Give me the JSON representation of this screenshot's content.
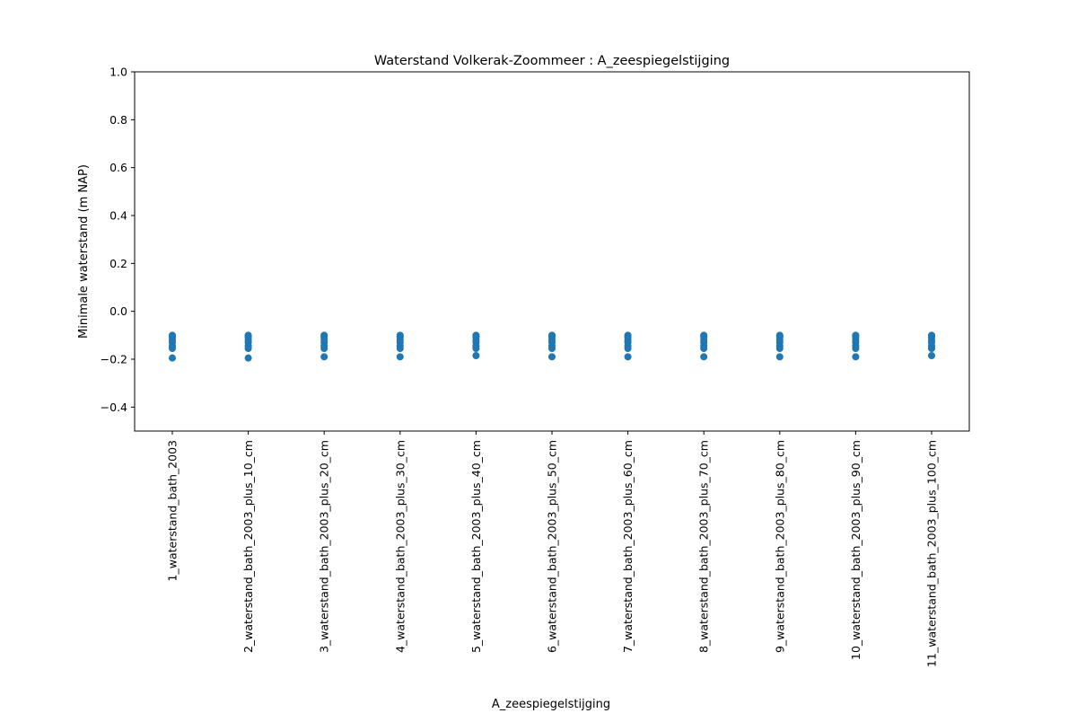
{
  "chart_data": {
    "type": "scatter",
    "title": "Waterstand Volkerak-Zoommeer : A_zeespiegelstijging",
    "xlabel": "A_zeespiegelstijging",
    "ylabel": "Minimale waterstand (m NAP)",
    "ylim": [
      -0.5,
      1.0
    ],
    "yticks": [
      "−0.4",
      "−0.2",
      "0.0",
      "0.2",
      "0.4",
      "0.6",
      "0.8",
      "1.0"
    ],
    "ytick_values": [
      -0.4,
      -0.2,
      0.0,
      0.2,
      0.4,
      0.6,
      0.8,
      1.0
    ],
    "grid": false,
    "marker_color": "#1f77b4",
    "categories": [
      "1_waterstand_bath_2003",
      "2_waterstand_bath_2003_plus_10_cm",
      "3_waterstand_bath_2003_plus_20_cm",
      "4_waterstand_bath_2003_plus_30_cm",
      "5_waterstand_bath_2003_plus_40_cm",
      "6_waterstand_bath_2003_plus_50_cm",
      "7_waterstand_bath_2003_plus_60_cm",
      "8_waterstand_bath_2003_plus_70_cm",
      "9_waterstand_bath_2003_plus_80_cm",
      "10_waterstand_bath_2003_plus_90_cm",
      "11_waterstand_bath_2003_plus_100_cm"
    ],
    "series": [
      {
        "values": [
          [
            -0.1,
            -0.105,
            -0.11,
            -0.12,
            -0.13,
            -0.145,
            -0.155,
            -0.195
          ],
          [
            -0.1,
            -0.105,
            -0.11,
            -0.12,
            -0.13,
            -0.145,
            -0.155,
            -0.195
          ],
          [
            -0.1,
            -0.105,
            -0.11,
            -0.12,
            -0.13,
            -0.145,
            -0.155,
            -0.19
          ],
          [
            -0.1,
            -0.105,
            -0.11,
            -0.12,
            -0.13,
            -0.145,
            -0.155,
            -0.19
          ],
          [
            -0.1,
            -0.105,
            -0.11,
            -0.12,
            -0.13,
            -0.145,
            -0.155,
            -0.185
          ],
          [
            -0.1,
            -0.105,
            -0.11,
            -0.12,
            -0.13,
            -0.145,
            -0.155,
            -0.19
          ],
          [
            -0.1,
            -0.105,
            -0.11,
            -0.12,
            -0.13,
            -0.145,
            -0.155,
            -0.19
          ],
          [
            -0.1,
            -0.105,
            -0.11,
            -0.12,
            -0.13,
            -0.145,
            -0.155,
            -0.19
          ],
          [
            -0.1,
            -0.105,
            -0.11,
            -0.12,
            -0.13,
            -0.145,
            -0.155,
            -0.19
          ],
          [
            -0.1,
            -0.105,
            -0.11,
            -0.12,
            -0.13,
            -0.145,
            -0.155,
            -0.19
          ],
          [
            -0.1,
            -0.105,
            -0.11,
            -0.12,
            -0.13,
            -0.145,
            -0.155,
            -0.185
          ]
        ]
      }
    ]
  }
}
